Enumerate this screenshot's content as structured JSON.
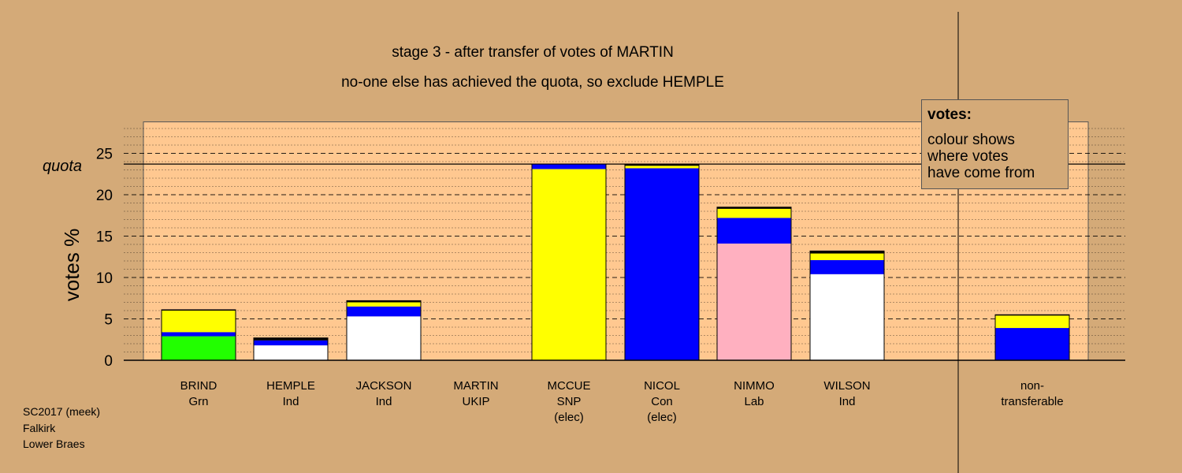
{
  "chart_data": {
    "type": "bar",
    "title": "stage 3 - after transfer of votes of MARTIN",
    "subtitle": "no-one else has achieved the quota, so exclude HEMPLE",
    "ylabel": "votes %",
    "ylim": [
      0,
      28.8
    ],
    "yticks": [
      0,
      5,
      10,
      15,
      20,
      25
    ],
    "quota": 23.7,
    "quota_label": "quota",
    "stack_colors": {
      "green": "#22ff00",
      "yellow": "#ffff00",
      "blue": "#0000ff",
      "white": "#ffffff",
      "pink": "#ffb0c0",
      "black": "#000000"
    },
    "categories": [
      {
        "lines": [
          "BRIND",
          "Grn"
        ],
        "segments": [
          {
            "color": "green",
            "value": 2.9
          },
          {
            "color": "blue",
            "value": 0.5
          },
          {
            "color": "yellow",
            "value": 2.6
          },
          {
            "color": "black",
            "value": 0.1
          }
        ]
      },
      {
        "lines": [
          "HEMPLE",
          "Ind"
        ],
        "segments": [
          {
            "color": "white",
            "value": 1.8
          },
          {
            "color": "blue",
            "value": 0.6
          },
          {
            "color": "black",
            "value": 0.3
          }
        ]
      },
      {
        "lines": [
          "JACKSON",
          "Ind"
        ],
        "segments": [
          {
            "color": "white",
            "value": 5.3
          },
          {
            "color": "blue",
            "value": 1.2
          },
          {
            "color": "yellow",
            "value": 0.5
          },
          {
            "color": "black",
            "value": 0.2
          }
        ]
      },
      {
        "lines": [
          "MARTIN",
          "UKIP"
        ],
        "segments": []
      },
      {
        "lines": [
          "MCCUE",
          "SNP",
          "(elec)"
        ],
        "segments": [
          {
            "color": "yellow",
            "value": 23.1
          },
          {
            "color": "blue",
            "value": 0.6
          }
        ]
      },
      {
        "lines": [
          "NICOL",
          "Con",
          "(elec)"
        ],
        "segments": [
          {
            "color": "blue",
            "value": 23.2
          },
          {
            "color": "yellow",
            "value": 0.3
          },
          {
            "color": "black",
            "value": 0.2
          }
        ]
      },
      {
        "lines": [
          "NIMMO",
          "Lab"
        ],
        "segments": [
          {
            "color": "pink",
            "value": 14.1
          },
          {
            "color": "blue",
            "value": 3.1
          },
          {
            "color": "yellow",
            "value": 1.1
          },
          {
            "color": "black",
            "value": 0.2
          }
        ]
      },
      {
        "lines": [
          "WILSON",
          "Ind"
        ],
        "segments": [
          {
            "color": "white",
            "value": 10.4
          },
          {
            "color": "blue",
            "value": 1.7
          },
          {
            "color": "yellow",
            "value": 0.8
          },
          {
            "color": "black",
            "value": 0.3
          }
        ]
      },
      {
        "lines": [
          "non-",
          "transferable"
        ],
        "segments": [
          {
            "color": "blue",
            "value": 3.9
          },
          {
            "color": "yellow",
            "value": 1.5
          },
          {
            "color": "black",
            "value": 0.1
          }
        ]
      }
    ],
    "legend": {
      "title": "votes:",
      "lines": [
        "colour shows",
        "where votes",
        "have come from"
      ],
      "placement": "top-right"
    }
  },
  "notes": [
    "SC2017 (meek)",
    "Falkirk",
    "Lower Braes"
  ]
}
